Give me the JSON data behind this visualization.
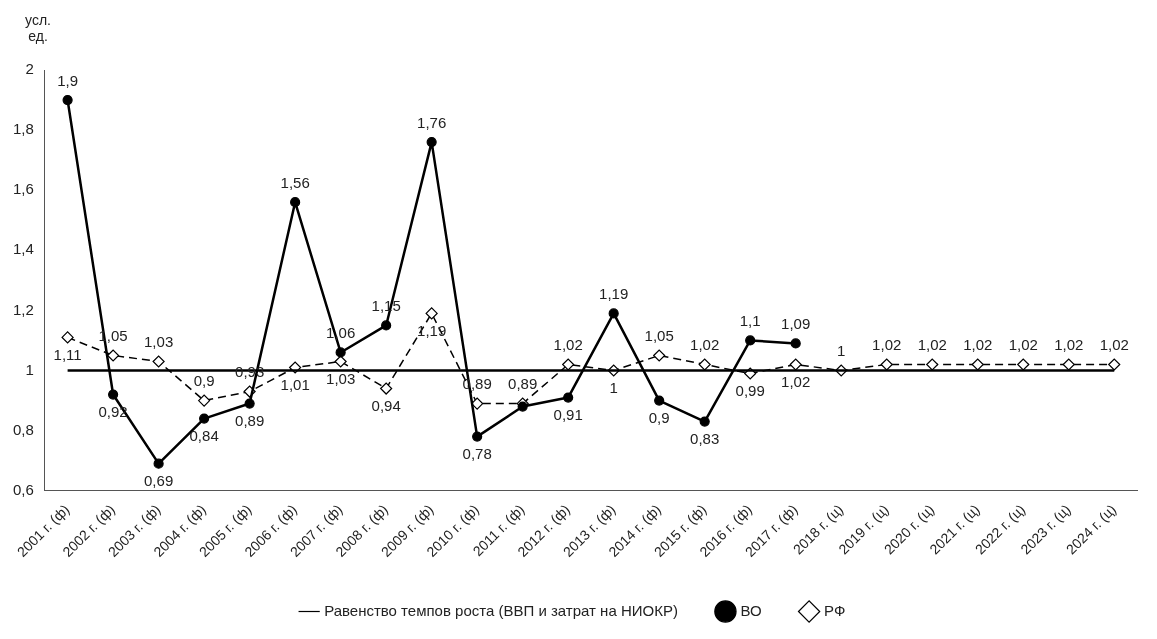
{
  "chart_data": {
    "type": "line",
    "ylabel": "усл. ед.",
    "categories": [
      "2001 г. (ф)",
      "2002 г. (ф)",
      "2003 г. (ф)",
      "2004 г. (ф)",
      "2005 г. (ф)",
      "2006 г. (ф)",
      "2007 г. (ф)",
      "2008 г. (ф)",
      "2009 г. (ф)",
      "2010 г. (ф)",
      "2011 г. (ф)",
      "2012 г. (ф)",
      "2013 г. (ф)",
      "2014 г. (ф)",
      "2015 г. (ф)",
      "2016 г. (ф)",
      "2017 г. (ф)",
      "2018 г. (ц)",
      "2019 г. (ц)",
      "2020 г. (ц)",
      "2021 г. (ц)",
      "2022 г. (ц)",
      "2023 г. (ц)",
      "2024 г. (ц)"
    ],
    "series": [
      {
        "name": "РФ",
        "color": "#000000",
        "marker": "diamond",
        "line_style": "dashed",
        "values": [
          1.11,
          1.05,
          1.03,
          0.9,
          0.93,
          1.01,
          1.03,
          0.94,
          1.19,
          0.89,
          0.89,
          1.02,
          1,
          1.05,
          1.02,
          0.99,
          1.02,
          1,
          1.02,
          1.02,
          1.02,
          1.02,
          1.02,
          1.02
        ],
        "value_labels": [
          "1,11",
          "1,05",
          "1,03",
          "0,9",
          "0,93",
          "1,01",
          "1,03",
          "0,94",
          "1,19",
          "0,89",
          "0,89",
          "1,02",
          "1",
          "1,05",
          "1,02",
          "0,99",
          "1,02",
          "1",
          "1,02",
          "1,02",
          "1,02",
          "1,02",
          "1,02",
          "1,02"
        ]
      },
      {
        "name": "ВО",
        "color": "#000000",
        "marker": "circle",
        "line_style": "solid",
        "values": [
          1.9,
          0.92,
          0.69,
          0.84,
          0.89,
          1.56,
          1.06,
          1.15,
          1.76,
          0.78,
          0.88,
          0.91,
          1.19,
          0.9,
          0.83,
          1.1,
          1.09,
          null,
          null,
          null,
          null,
          null,
          null,
          null
        ],
        "value_labels": [
          "1,9",
          "0,92",
          "0,69",
          "0,84",
          "0,89",
          "1,56",
          "1,06",
          "1,15",
          "1,76",
          "0,78",
          null,
          "0,91",
          "1,19",
          "0,9",
          "0,83",
          "1,1",
          "1,09",
          null,
          null,
          null,
          null,
          null,
          null,
          null
        ]
      },
      {
        "name": "Равенство темпов роста (ВВП и затрат на НИОКР)",
        "color": "#000000",
        "marker": "none",
        "line_style": "solid",
        "values": [
          1,
          1,
          1,
          1,
          1,
          1,
          1,
          1,
          1,
          1,
          1,
          1,
          1,
          1,
          1,
          1,
          1,
          1,
          1,
          1,
          1,
          1,
          1,
          1
        ]
      }
    ],
    "ylim": [
      0.6,
      2
    ],
    "yticks": [
      {
        "value": 0.6,
        "label": "0,6"
      },
      {
        "value": 0.8,
        "label": "0,8"
      },
      {
        "value": 1,
        "label": "1"
      },
      {
        "value": 1.2,
        "label": "1,2"
      },
      {
        "value": 1.4,
        "label": "1,4"
      },
      {
        "value": 1.6,
        "label": "1,6"
      },
      {
        "value": 1.8,
        "label": "1,8"
      },
      {
        "value": 2,
        "label": "2"
      }
    ],
    "grid": false,
    "legend": "bottom"
  }
}
